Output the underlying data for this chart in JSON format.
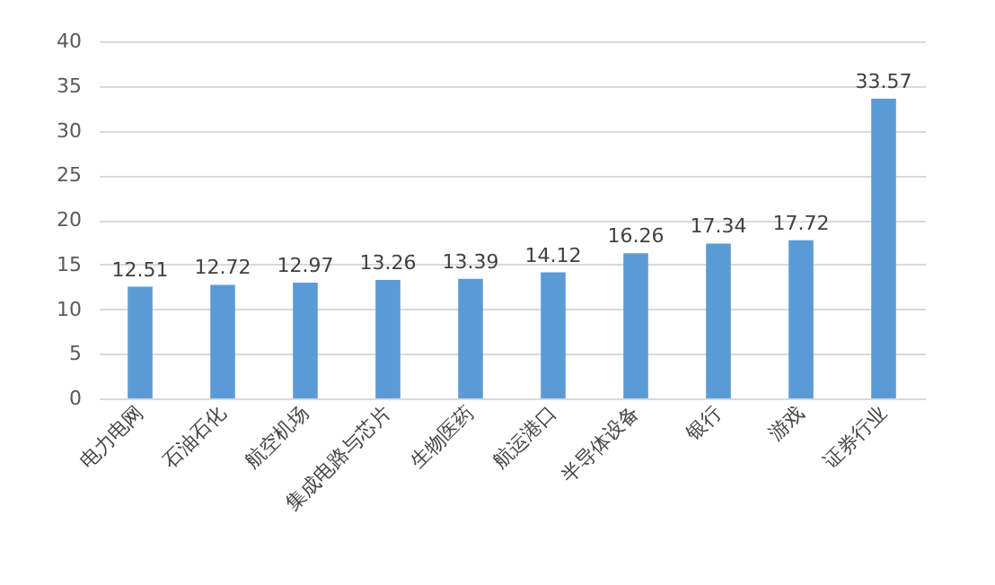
{
  "chart_data": {
    "type": "bar",
    "categories": [
      "电力电网",
      "石油石化",
      "航空机场",
      "集成电路与芯片",
      "生物医药",
      "航运港口",
      "半导体设备",
      "银行",
      "游戏",
      "证券行业"
    ],
    "values": [
      12.51,
      12.72,
      12.97,
      13.26,
      13.39,
      14.12,
      16.26,
      17.34,
      17.72,
      33.57
    ],
    "color": "#5b9bd5",
    "ylim": [
      0,
      40
    ],
    "yticks": [
      0,
      5,
      10,
      15,
      20,
      25,
      30,
      35,
      40
    ],
    "grid": "y",
    "data_labels": true
  }
}
